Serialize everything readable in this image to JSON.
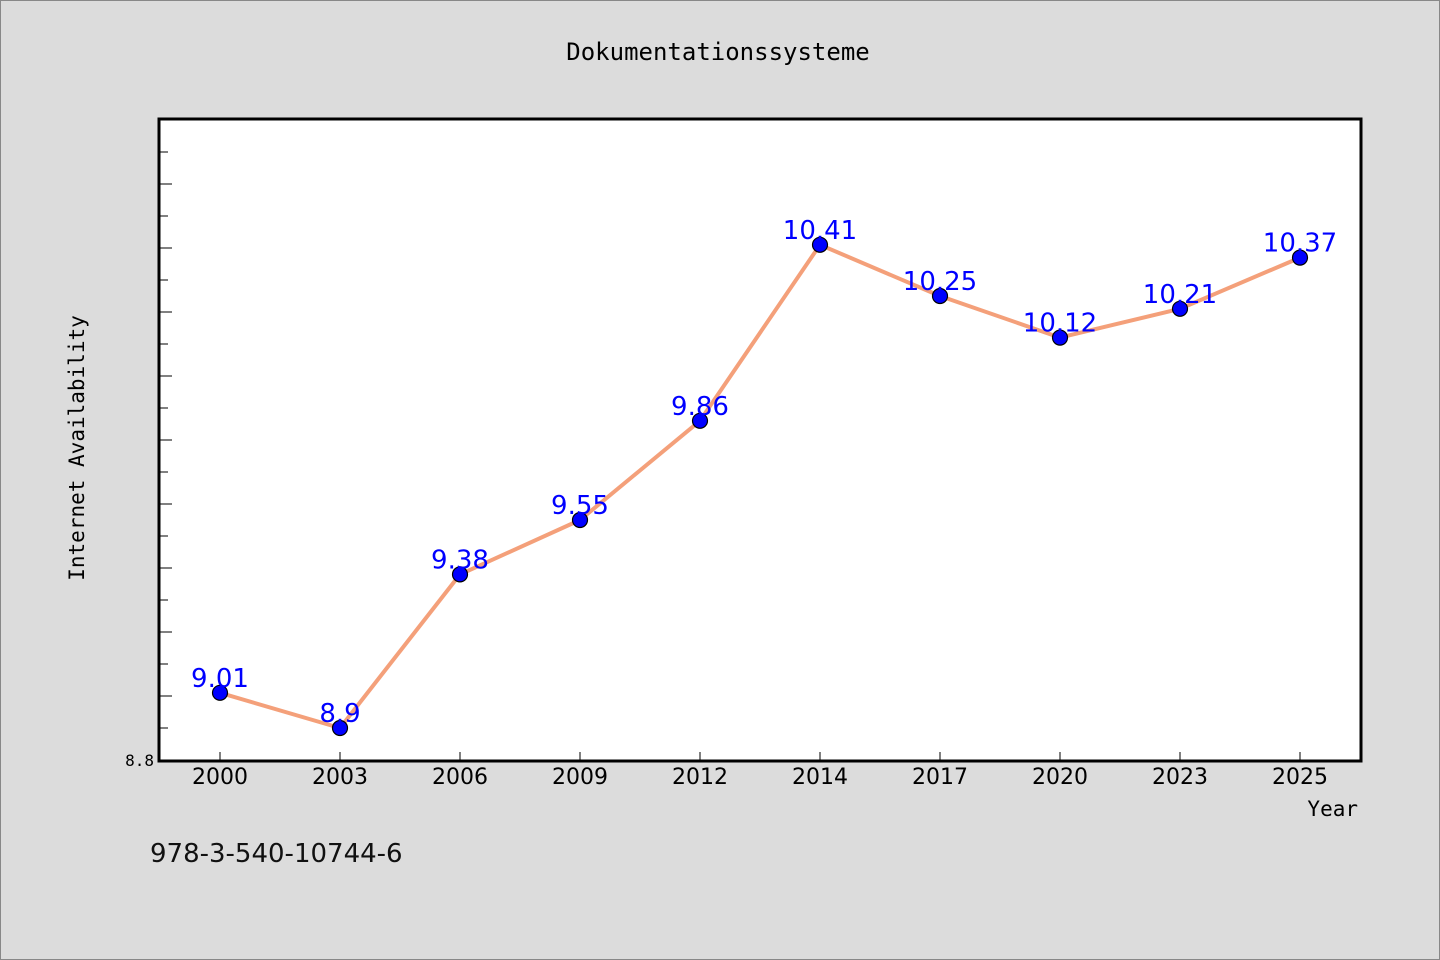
{
  "chart_data": {
    "type": "line",
    "title": "Dokumentationssysteme",
    "xlabel": "Year",
    "ylabel": "Internet Availability",
    "categories": [
      "2000",
      "2003",
      "2006",
      "2009",
      "2012",
      "2014",
      "2017",
      "2020",
      "2023",
      "2025"
    ],
    "values": [
      9.01,
      8.9,
      9.38,
      9.55,
      9.86,
      10.41,
      10.25,
      10.12,
      10.21,
      10.37
    ],
    "data_labels": [
      "9.01",
      "8.9",
      "9.38",
      "9.55",
      "9.86",
      "10.41",
      "10.25",
      "10.12",
      "10.21",
      "10.37"
    ],
    "ylim": [
      8.8,
      10.8
    ],
    "y_tick_label": "8.8",
    "y_minor_ticks": 19,
    "grid": false,
    "colors": {
      "line": "#f4a07a",
      "marker": "#0000ff",
      "label": "#0000ff",
      "background": "#dcdcdc",
      "plot_area": "#ffffff"
    }
  },
  "footer_text": "978-3-540-10744-6"
}
